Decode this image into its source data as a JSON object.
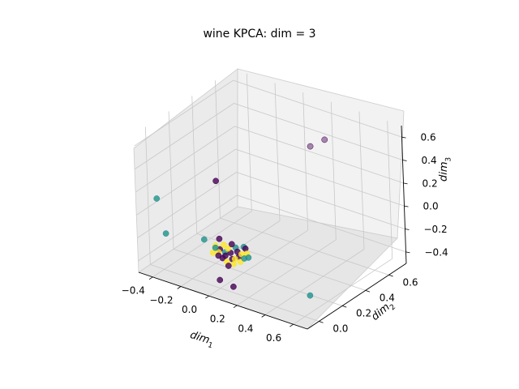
{
  "chart_data": {
    "type": "scatter3d",
    "title": "wine KPCA: dim = 3",
    "xlabel": "dim",
    "xlabel_sub": "1",
    "ylabel": "dim",
    "ylabel_sub": "2",
    "zlabel": "dim",
    "zlabel_sub": "3",
    "x_ticks": [
      "−0.4",
      "−0.2",
      "0.0",
      "0.2",
      "0.4",
      "0.6"
    ],
    "y_ticks": [
      "0.0",
      "0.2",
      "0.4",
      "0.6"
    ],
    "z_ticks": [
      "−0.4",
      "−0.2",
      "0.0",
      "0.2",
      "0.4",
      "0.6"
    ],
    "xlim": [
      -0.5,
      0.7
    ],
    "ylim": [
      -0.1,
      0.75
    ],
    "zlim": [
      -0.5,
      0.7
    ],
    "grid": true,
    "class_colors": [
      "#440154",
      "#21918c",
      "#fde725"
    ],
    "points": [
      {
        "x": -0.05,
        "y": 0.05,
        "z": 0.38,
        "c": 0
      },
      {
        "x": -0.04,
        "y": 0.05,
        "z": -0.12,
        "c": 0
      },
      {
        "x": 0.15,
        "y": 0.62,
        "z": 0.38,
        "c": 0
      },
      {
        "x": 0.22,
        "y": 0.66,
        "z": 0.44,
        "c": 0
      },
      {
        "x": -0.02,
        "y": 0.02,
        "z": -0.45,
        "c": 0
      },
      {
        "x": 0.05,
        "y": 0.05,
        "z": -0.5,
        "c": 0
      },
      {
        "x": -0.48,
        "y": 0.05,
        "z": 0.05,
        "c": 1
      },
      {
        "x": -0.38,
        "y": 0.0,
        "z": -0.18,
        "c": 1
      },
      {
        "x": 0.6,
        "y": 0.05,
        "z": -0.35,
        "c": 1
      },
      {
        "x": -0.14,
        "y": 0.04,
        "z": -0.16,
        "c": 1
      },
      {
        "x": 0.0,
        "y": 0.05,
        "z": -0.22,
        "c": 1
      },
      {
        "x": 0.05,
        "y": 0.08,
        "z": -0.18,
        "c": 1
      },
      {
        "x": 0.1,
        "y": 0.09,
        "z": -0.16,
        "c": 1
      },
      {
        "x": -0.03,
        "y": 0.04,
        "z": -0.2,
        "c": 0
      },
      {
        "x": 0.0,
        "y": 0.05,
        "z": -0.25,
        "c": 0
      },
      {
        "x": 0.03,
        "y": 0.06,
        "z": -0.22,
        "c": 0
      },
      {
        "x": 0.07,
        "y": 0.07,
        "z": -0.2,
        "c": 0
      },
      {
        "x": -0.02,
        "y": 0.05,
        "z": -0.28,
        "c": 0
      },
      {
        "x": 0.04,
        "y": 0.06,
        "z": -0.27,
        "c": 0
      },
      {
        "x": 0.08,
        "y": 0.07,
        "z": -0.24,
        "c": 0
      },
      {
        "x": 0.12,
        "y": 0.08,
        "z": -0.16,
        "c": 0
      },
      {
        "x": -0.04,
        "y": 0.04,
        "z": -0.23,
        "c": 2
      },
      {
        "x": 0.02,
        "y": 0.05,
        "z": -0.18,
        "c": 2
      },
      {
        "x": 0.06,
        "y": 0.06,
        "z": -0.26,
        "c": 2
      },
      {
        "x": 0.1,
        "y": 0.07,
        "z": -0.21,
        "c": 2
      },
      {
        "x": 0.01,
        "y": 0.05,
        "z": -0.3,
        "c": 2
      },
      {
        "x": -0.06,
        "y": 0.04,
        "z": -0.18,
        "c": 2
      },
      {
        "x": 0.13,
        "y": 0.08,
        "z": -0.2,
        "c": 2
      },
      {
        "x": 0.09,
        "y": 0.07,
        "z": -0.28,
        "c": 2
      },
      {
        "x": -0.01,
        "y": 0.05,
        "z": -0.16,
        "c": 2
      },
      {
        "x": 0.05,
        "y": 0.06,
        "z": -0.31,
        "c": 2
      },
      {
        "x": -0.08,
        "y": 0.04,
        "z": -0.25,
        "c": 2
      },
      {
        "x": 0.11,
        "y": 0.08,
        "z": -0.25,
        "c": 1
      },
      {
        "x": -0.07,
        "y": 0.05,
        "z": -0.21,
        "c": 1
      },
      {
        "x": 0.04,
        "y": 0.06,
        "z": -0.14,
        "c": 0
      },
      {
        "x": -0.05,
        "y": 0.05,
        "z": -0.27,
        "c": 0
      },
      {
        "x": 0.02,
        "y": 0.05,
        "z": -0.33,
        "c": 0
      },
      {
        "x": 0.14,
        "y": 0.08,
        "z": -0.23,
        "c": 1
      }
    ]
  }
}
